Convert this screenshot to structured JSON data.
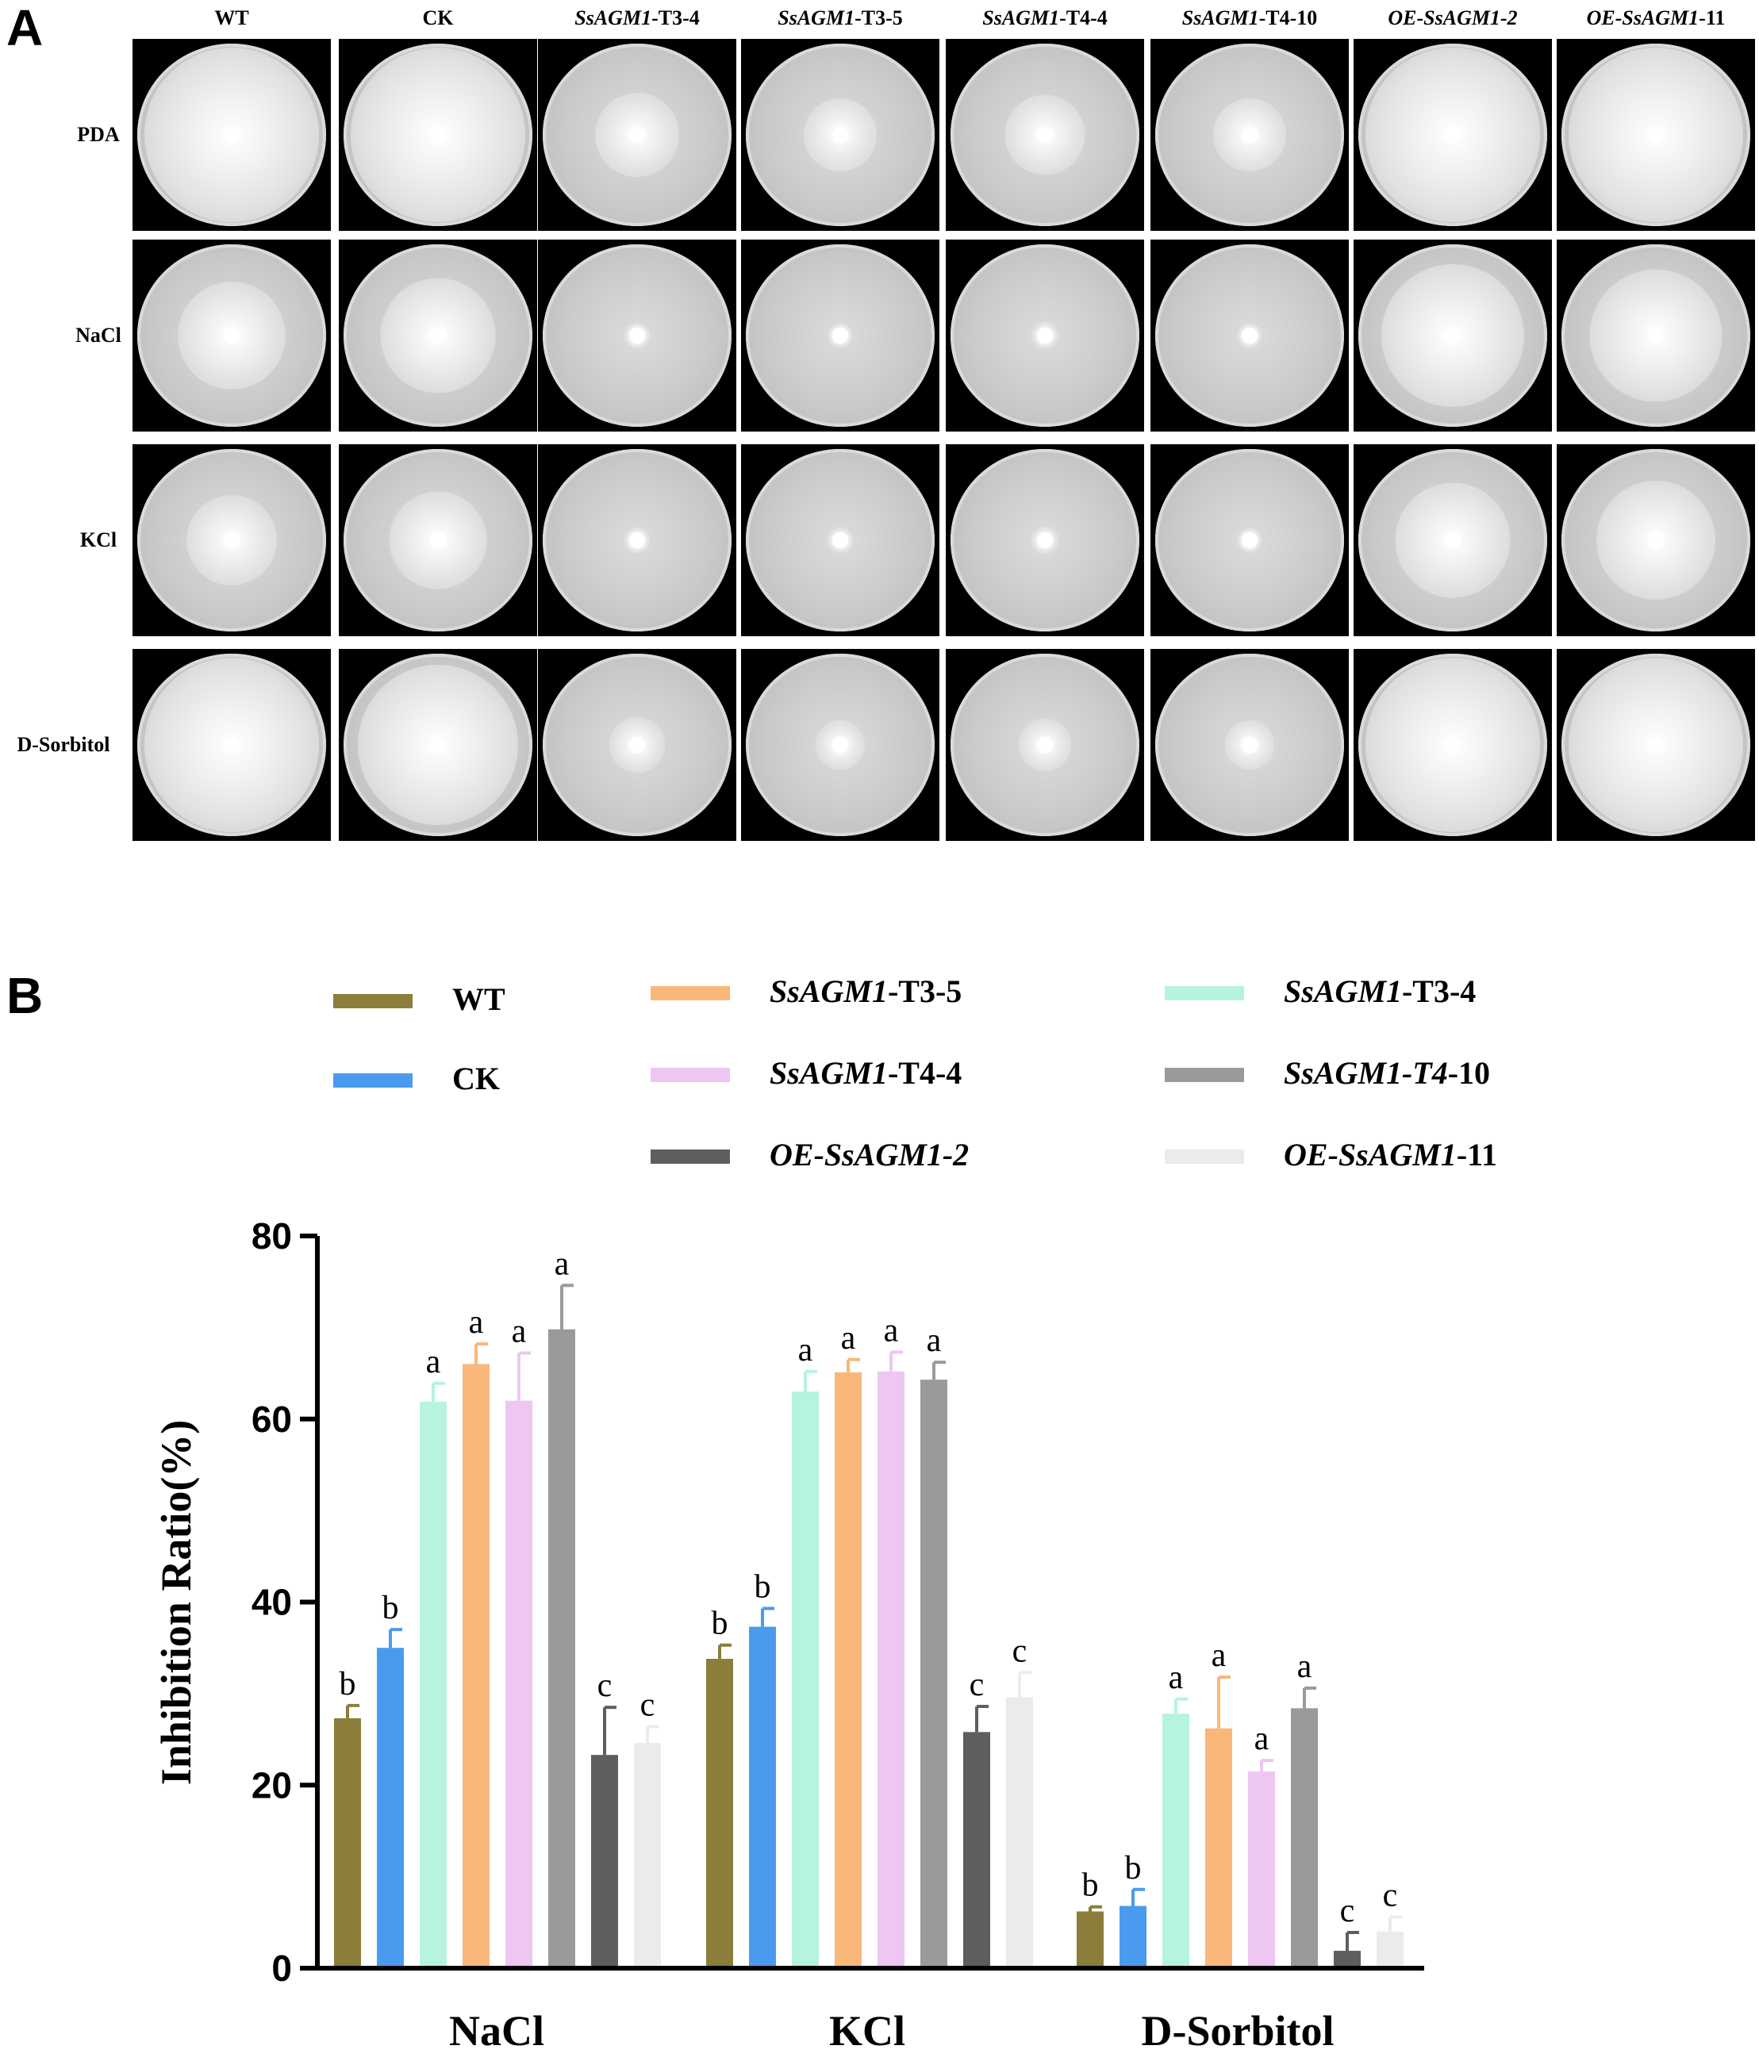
{
  "panel_a": {
    "letter": "A",
    "columns": [
      {
        "gene": "",
        "suffix": "WT"
      },
      {
        "gene": "",
        "suffix": "CK"
      },
      {
        "gene": "SsAGM1",
        "suffix": "-T3-4"
      },
      {
        "gene": "SsAGM1",
        "suffix": "-T3-5"
      },
      {
        "gene": "SsAGM1",
        "suffix": "-T4-4"
      },
      {
        "gene": "SsAGM1",
        "suffix": "-T4-10"
      },
      {
        "gene": "OE-SsAGM1-2",
        "suffix": ""
      },
      {
        "gene": "OE-SsAGM1",
        "suffix": "-11"
      }
    ],
    "rows": [
      "PDA",
      "NaCl",
      "KCl",
      "D-Sorbitol"
    ],
    "colony_size": [
      [
        1.0,
        1.0,
        0.48,
        0.42,
        0.46,
        0.42,
        1.0,
        1.0
      ],
      [
        0.62,
        0.66,
        0.15,
        0.14,
        0.16,
        0.14,
        0.82,
        0.76
      ],
      [
        0.52,
        0.56,
        0.15,
        0.15,
        0.16,
        0.14,
        0.66,
        0.68
      ],
      [
        1.0,
        0.92,
        0.32,
        0.28,
        0.3,
        0.28,
        1.0,
        1.0
      ]
    ]
  },
  "panel_b": {
    "letter": "B",
    "legend": [
      {
        "gene": "",
        "suffix": "WT",
        "color": "#8B7D3A"
      },
      {
        "gene": "",
        "suffix": "CK",
        "color": "#4A9BEF"
      },
      {
        "gene": "SsAGM1",
        "suffix": "-T3-5",
        "color": "#F9B77A"
      },
      {
        "gene": "SsAGM1",
        "suffix": "-T4-4",
        "color": "#EDC6F2"
      },
      {
        "gene": "OE-SsAGM1-2",
        "suffix": "",
        "color": "#5E5E5E"
      },
      {
        "gene": "SsAGM1",
        "suffix": "-T3-4",
        "color": "#B6F3E0"
      },
      {
        "gene": "SsAGM1-T4",
        "suffix": "-10",
        "color": "#9A9A9C"
      },
      {
        "gene": "OE-SsAGM1",
        "suffix": "-11",
        "color": "#EBEBEB"
      }
    ]
  },
  "chart_data": {
    "type": "bar",
    "ylabel": "Inhibition Ratio(%)",
    "ylim": [
      0,
      80
    ],
    "yticks": [
      0,
      20,
      40,
      60,
      80
    ],
    "categories": [
      "NaCl",
      "KCl",
      "D-Sorbitol"
    ],
    "series": [
      {
        "name": "WT",
        "color": "#8B7D3A",
        "values": [
          27.3,
          33.8,
          6.2
        ],
        "errors": [
          1.4,
          1.5,
          0.5
        ],
        "labels": [
          "b",
          "b",
          "b"
        ]
      },
      {
        "name": "CK",
        "color": "#4A9BEF",
        "values": [
          35.0,
          37.3,
          6.8
        ],
        "errors": [
          2.0,
          2.0,
          1.8
        ],
        "labels": [
          "b",
          "b",
          "b"
        ]
      },
      {
        "name": "SsAGM1-T3-4",
        "color": "#B6F3E0",
        "values": [
          61.9,
          63.0,
          27.8
        ],
        "errors": [
          2.0,
          2.2,
          1.6
        ],
        "labels": [
          "a",
          "a",
          "a"
        ]
      },
      {
        "name": "SsAGM1-T3-5",
        "color": "#F9B77A",
        "values": [
          66.0,
          65.1,
          26.2
        ],
        "errors": [
          2.2,
          1.4,
          5.6
        ],
        "labels": [
          "a",
          "a",
          "a"
        ]
      },
      {
        "name": "SsAGM1-T4-4",
        "color": "#EDC6F2",
        "values": [
          62.0,
          65.2,
          21.5
        ],
        "errors": [
          5.2,
          2.1,
          1.2
        ],
        "labels": [
          "a",
          "a",
          "a"
        ]
      },
      {
        "name": "SsAGM1-T4-10",
        "color": "#9A9A9C",
        "values": [
          69.8,
          64.3,
          28.4
        ],
        "errors": [
          4.8,
          1.9,
          2.2
        ],
        "labels": [
          "a",
          "a",
          "a"
        ]
      },
      {
        "name": "OE-SsAGM1-2",
        "color": "#5E5E5E",
        "values": [
          23.3,
          25.8,
          1.9
        ],
        "errors": [
          5.2,
          2.8,
          2.0
        ],
        "labels": [
          "c",
          "c",
          "c"
        ]
      },
      {
        "name": "OE-SsAGM1-11",
        "color": "#EBEBEB",
        "values": [
          24.6,
          29.6,
          4.0
        ],
        "errors": [
          1.8,
          2.7,
          1.6
        ],
        "labels": [
          "c",
          "c",
          "c"
        ]
      }
    ]
  }
}
